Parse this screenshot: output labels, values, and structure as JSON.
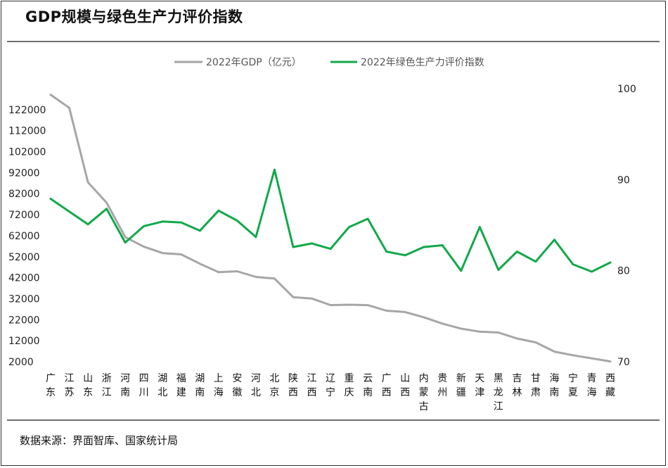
{
  "title": "GDP规模与绿色生产力评价指数",
  "source": "数据来源：界面智库、国家统计局",
  "chart_data": {
    "type": "line",
    "categories": [
      "广东",
      "江苏",
      "山东",
      "浙江",
      "河南",
      "四川",
      "湖北",
      "福建",
      "湖南",
      "上海",
      "安徽",
      "河北",
      "北京",
      "陕西",
      "江西",
      "辽宁",
      "重庆",
      "云南",
      "广西",
      "山西",
      "内蒙古",
      "贵州",
      "新疆",
      "天津",
      "黑龙江",
      "吉林",
      "甘肃",
      "海南",
      "宁夏",
      "青海",
      "西藏"
    ],
    "series": [
      {
        "name": "2022年GDP（亿元）",
        "axis": "left",
        "color": "#a6a6a6",
        "values": [
          129119,
          122876,
          87435,
          77715,
          61345,
          56750,
          53735,
          53110,
          48670,
          44653,
          45045,
          42370,
          41611,
          32773,
          32075,
          28975,
          29129,
          28954,
          26301,
          25643,
          23159,
          20165,
          17741,
          16311,
          15901,
          13070,
          11201,
          6818,
          5070,
          3610,
          2133
        ]
      },
      {
        "name": "2022年绿色生产力评价指数",
        "axis": "right",
        "color": "#12a84a",
        "values": [
          87.9,
          86.5,
          85.1,
          86.8,
          83.1,
          84.9,
          85.4,
          85.3,
          84.4,
          86.6,
          85.5,
          83.7,
          91.1,
          82.6,
          83.0,
          82.4,
          84.8,
          85.7,
          82.1,
          81.7,
          82.6,
          82.8,
          80.0,
          84.8,
          80.1,
          82.1,
          81.0,
          83.4,
          80.7,
          79.9,
          80.9
        ]
      }
    ],
    "y_left": {
      "ticks": [
        2000,
        12000,
        22000,
        32000,
        42000,
        52000,
        62000,
        72000,
        82000,
        92000,
        102000,
        112000,
        122000
      ],
      "range": [
        2000,
        132000
      ]
    },
    "y_right": {
      "ticks": [
        70,
        80,
        90,
        100
      ],
      "range": [
        70,
        100
      ]
    },
    "legend_position": "top-center",
    "grid": false
  }
}
